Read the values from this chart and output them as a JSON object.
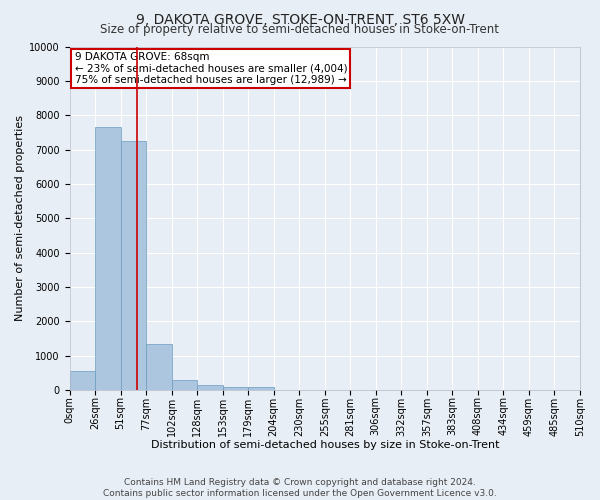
{
  "title": "9, DAKOTA GROVE, STOKE-ON-TRENT, ST6 5XW",
  "subtitle": "Size of property relative to semi-detached houses in Stoke-on-Trent",
  "xlabel": "Distribution of semi-detached houses by size in Stoke-on-Trent",
  "ylabel": "Number of semi-detached properties",
  "footer": "Contains HM Land Registry data © Crown copyright and database right 2024.\nContains public sector information licensed under the Open Government Licence v3.0.",
  "bin_labels": [
    "0sqm",
    "26sqm",
    "51sqm",
    "77sqm",
    "102sqm",
    "128sqm",
    "153sqm",
    "179sqm",
    "204sqm",
    "230sqm",
    "255sqm",
    "281sqm",
    "306sqm",
    "332sqm",
    "357sqm",
    "383sqm",
    "408sqm",
    "434sqm",
    "459sqm",
    "485sqm",
    "510sqm"
  ],
  "bar_values": [
    550,
    7650,
    7250,
    1350,
    300,
    150,
    100,
    80,
    0,
    0,
    0,
    0,
    0,
    0,
    0,
    0,
    0,
    0,
    0,
    0
  ],
  "bar_color": "#adc6df",
  "bar_edge_color": "#6a9cc0",
  "annotation_text_line1": "9 DAKOTA GROVE: 68sqm",
  "annotation_text_line2": "← 23% of semi-detached houses are smaller (4,004)",
  "annotation_text_line3": "75% of semi-detached houses are larger (12,989) →",
  "annotation_box_color": "#ffffff",
  "annotation_box_edge_color": "#cc0000",
  "ylim": [
    0,
    10000
  ],
  "yticks": [
    0,
    1000,
    2000,
    3000,
    4000,
    5000,
    6000,
    7000,
    8000,
    9000,
    10000
  ],
  "background_color": "#e8eef5",
  "grid_color": "#ffffff",
  "title_fontsize": 10,
  "subtitle_fontsize": 8.5,
  "axis_label_fontsize": 8,
  "tick_fontsize": 7,
  "annotation_fontsize": 7.5,
  "footer_fontsize": 6.5,
  "bin_edges": [
    0,
    26,
    51,
    77,
    102,
    128,
    153,
    179,
    204,
    230,
    255,
    281,
    306,
    332,
    357,
    383,
    408,
    434,
    459,
    485,
    510
  ],
  "property_value": 68,
  "red_line_color": "#cc0000"
}
